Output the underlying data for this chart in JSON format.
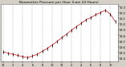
{
  "title": "Barometric Pressure per Hour (Last 24 Hours)",
  "hours": [
    0,
    1,
    2,
    3,
    4,
    5,
    6,
    7,
    8,
    9,
    10,
    11,
    12,
    13,
    14,
    15,
    16,
    17,
    18,
    19,
    20,
    21,
    22,
    23
  ],
  "pressure": [
    29.51,
    29.49,
    29.47,
    29.45,
    29.43,
    29.41,
    29.44,
    29.47,
    29.52,
    29.57,
    29.63,
    29.69,
    29.76,
    29.82,
    29.89,
    29.95,
    30.01,
    30.07,
    30.11,
    30.16,
    30.2,
    30.24,
    30.17,
    30.04
  ],
  "line_color": "#dd0000",
  "marker_color": "#111111",
  "bg_color": "#d4d0c8",
  "plot_bg_color": "#ffffff",
  "grid_color": "#999999",
  "ylim_min": 29.35,
  "ylim_max": 30.35,
  "title_fontsize": 3.2,
  "tick_fontsize": 2.5,
  "ytick_values": [
    29.4,
    29.5,
    29.6,
    29.7,
    29.8,
    29.9,
    30.0,
    30.1,
    30.2,
    30.3
  ],
  "ytick_labels": [
    "29.4",
    "29.5",
    "29.6",
    "29.7",
    "29.8",
    "29.9",
    "30.0",
    "30.1",
    "30.2",
    "30.3"
  ],
  "xtick_positions": [
    0,
    2,
    4,
    6,
    8,
    10,
    12,
    14,
    16,
    18,
    20,
    22
  ],
  "xtick_labels": [
    "12",
    "2",
    "4",
    "6",
    "8",
    "10",
    "12",
    "2",
    "4",
    "6",
    "8",
    "10"
  ]
}
